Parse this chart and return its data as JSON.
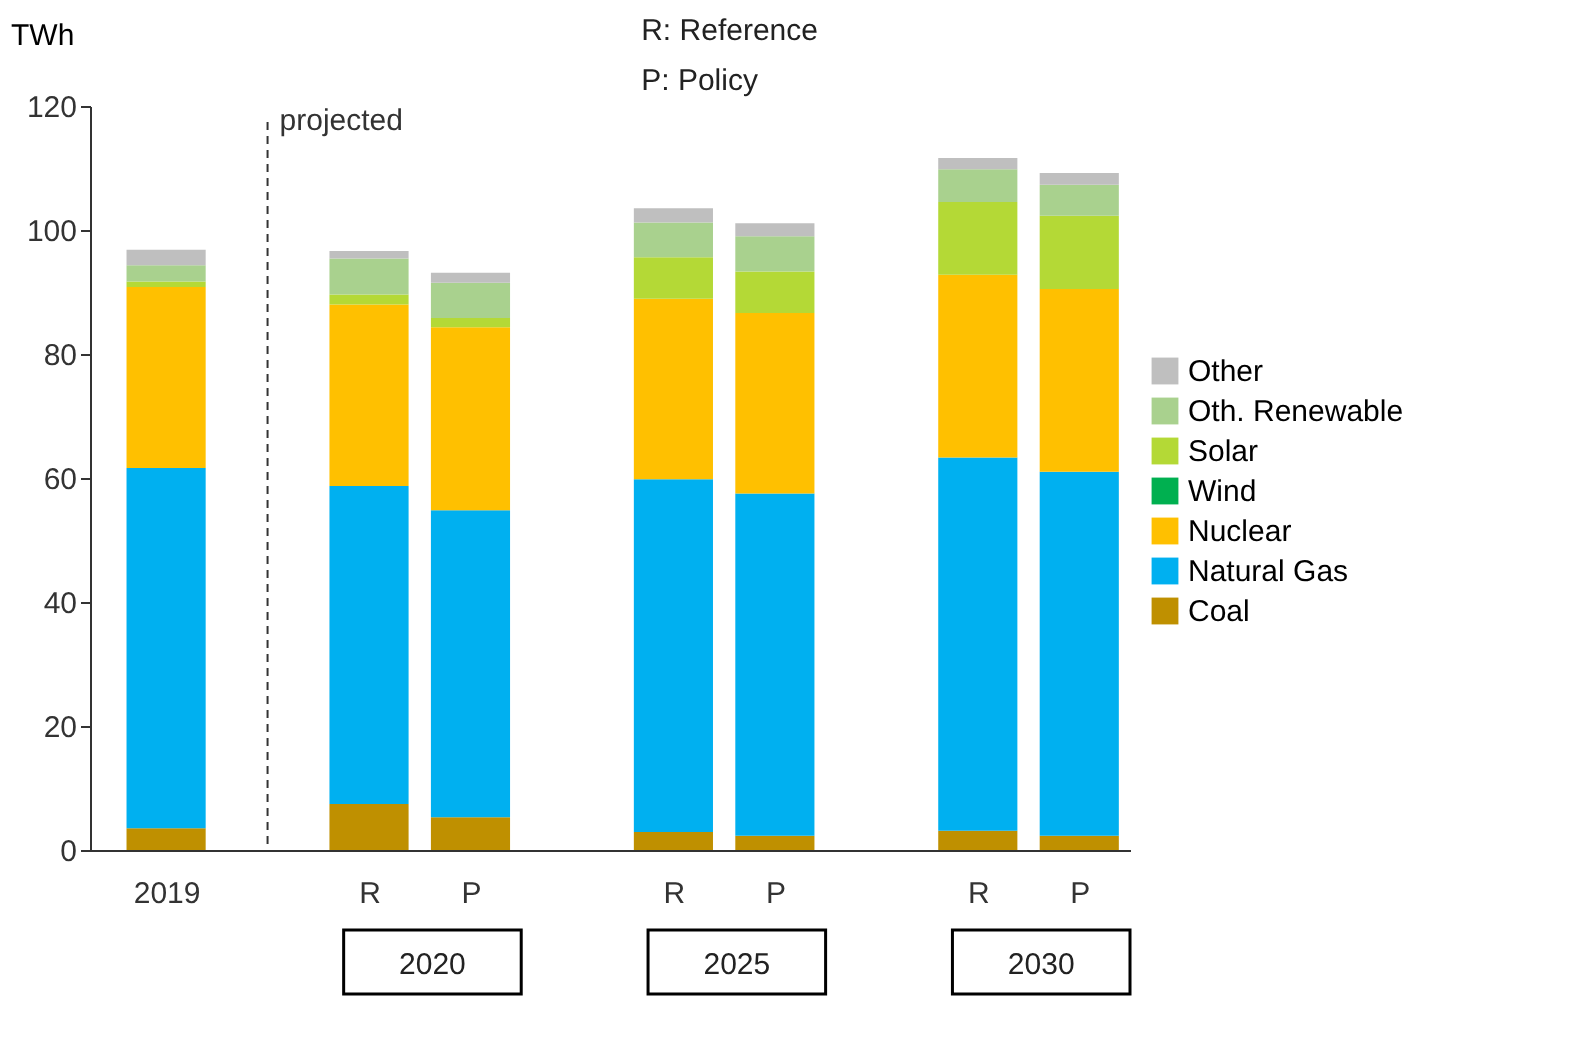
{
  "chart_data": {
    "type": "bar",
    "stacked": true,
    "ylabel": "TWh",
    "categories": [
      "2019",
      "R",
      "P",
      "R",
      "P",
      "R",
      "P"
    ],
    "series": [
      {
        "name": "Coal",
        "color": "#bf9000",
        "values": [
          3.5,
          7.4,
          5.3,
          2.9,
          2.3,
          3.1,
          2.3
        ]
      },
      {
        "name": "Natural Gas",
        "color": "#00b0f0",
        "values": [
          58.1,
          51.3,
          49.5,
          56.9,
          55.2,
          60.2,
          58.7
        ]
      },
      {
        "name": "Nuclear",
        "color": "#ffc000",
        "values": [
          29.2,
          29.3,
          29.5,
          29.1,
          29.1,
          29.5,
          29.5
        ]
      },
      {
        "name": "Wind",
        "color": "#00b050",
        "values": [
          0,
          0,
          0,
          0,
          0,
          0,
          0
        ]
      },
      {
        "name": "Solar",
        "color": "#b4d936",
        "values": [
          0.9,
          1.6,
          1.5,
          6.7,
          6.7,
          11.7,
          11.8
        ]
      },
      {
        "name": "Oth. Renewable",
        "color": "#a9d18e",
        "values": [
          2.6,
          5.8,
          5.7,
          5.6,
          5.7,
          5.3,
          5.0
        ]
      },
      {
        "name": "Other",
        "color": "#bfbfbf",
        "values": [
          2.5,
          1.2,
          1.6,
          2.3,
          2.1,
          1.8,
          1.9
        ]
      }
    ],
    "ylim": [
      0,
      120
    ],
    "yticks": [
      0,
      20,
      40,
      60,
      80,
      100,
      120
    ],
    "grid": false,
    "legend": "right",
    "annotations": [
      "projected",
      "R: Reference",
      "P: Policy",
      "2020",
      "2025",
      "2030"
    ]
  }
}
